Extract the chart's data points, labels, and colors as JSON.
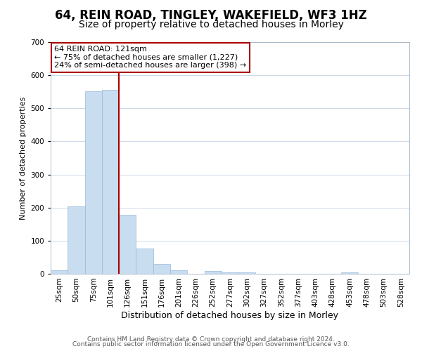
{
  "title": "64, REIN ROAD, TINGLEY, WAKEFIELD, WF3 1HZ",
  "subtitle": "Size of property relative to detached houses in Morley",
  "xlabel": "Distribution of detached houses by size in Morley",
  "ylabel": "Number of detached properties",
  "bar_labels": [
    "25sqm",
    "50sqm",
    "75sqm",
    "101sqm",
    "126sqm",
    "151sqm",
    "176sqm",
    "201sqm",
    "226sqm",
    "252sqm",
    "277sqm",
    "302sqm",
    "327sqm",
    "352sqm",
    "377sqm",
    "403sqm",
    "428sqm",
    "453sqm",
    "478sqm",
    "503sqm",
    "528sqm"
  ],
  "bar_values": [
    10,
    203,
    551,
    556,
    178,
    76,
    29,
    10,
    0,
    8,
    5,
    4,
    0,
    0,
    0,
    0,
    0,
    4,
    0,
    0,
    0
  ],
  "bar_color": "#c8ddf0",
  "bar_edgecolor": "#9ab8d8",
  "vline_index": 4,
  "vline_color": "#aa0000",
  "annotation_title": "64 REIN ROAD: 121sqm",
  "annotation_line1": "← 75% of detached houses are smaller (1,227)",
  "annotation_line2": "24% of semi-detached houses are larger (398) →",
  "annotation_box_facecolor": "#ffffff",
  "annotation_box_edgecolor": "#aa0000",
  "ylim": [
    0,
    700
  ],
  "yticks": [
    0,
    100,
    200,
    300,
    400,
    500,
    600,
    700
  ],
  "footer_line1": "Contains HM Land Registry data © Crown copyright and database right 2024.",
  "footer_line2": "Contains public sector information licensed under the Open Government Licence v3.0.",
  "background_color": "#ffffff",
  "grid_color": "#cdd8e8",
  "title_fontsize": 12,
  "subtitle_fontsize": 10,
  "xlabel_fontsize": 9,
  "ylabel_fontsize": 8,
  "tick_fontsize": 7.5,
  "annotation_fontsize": 8,
  "footer_fontsize": 6.5
}
